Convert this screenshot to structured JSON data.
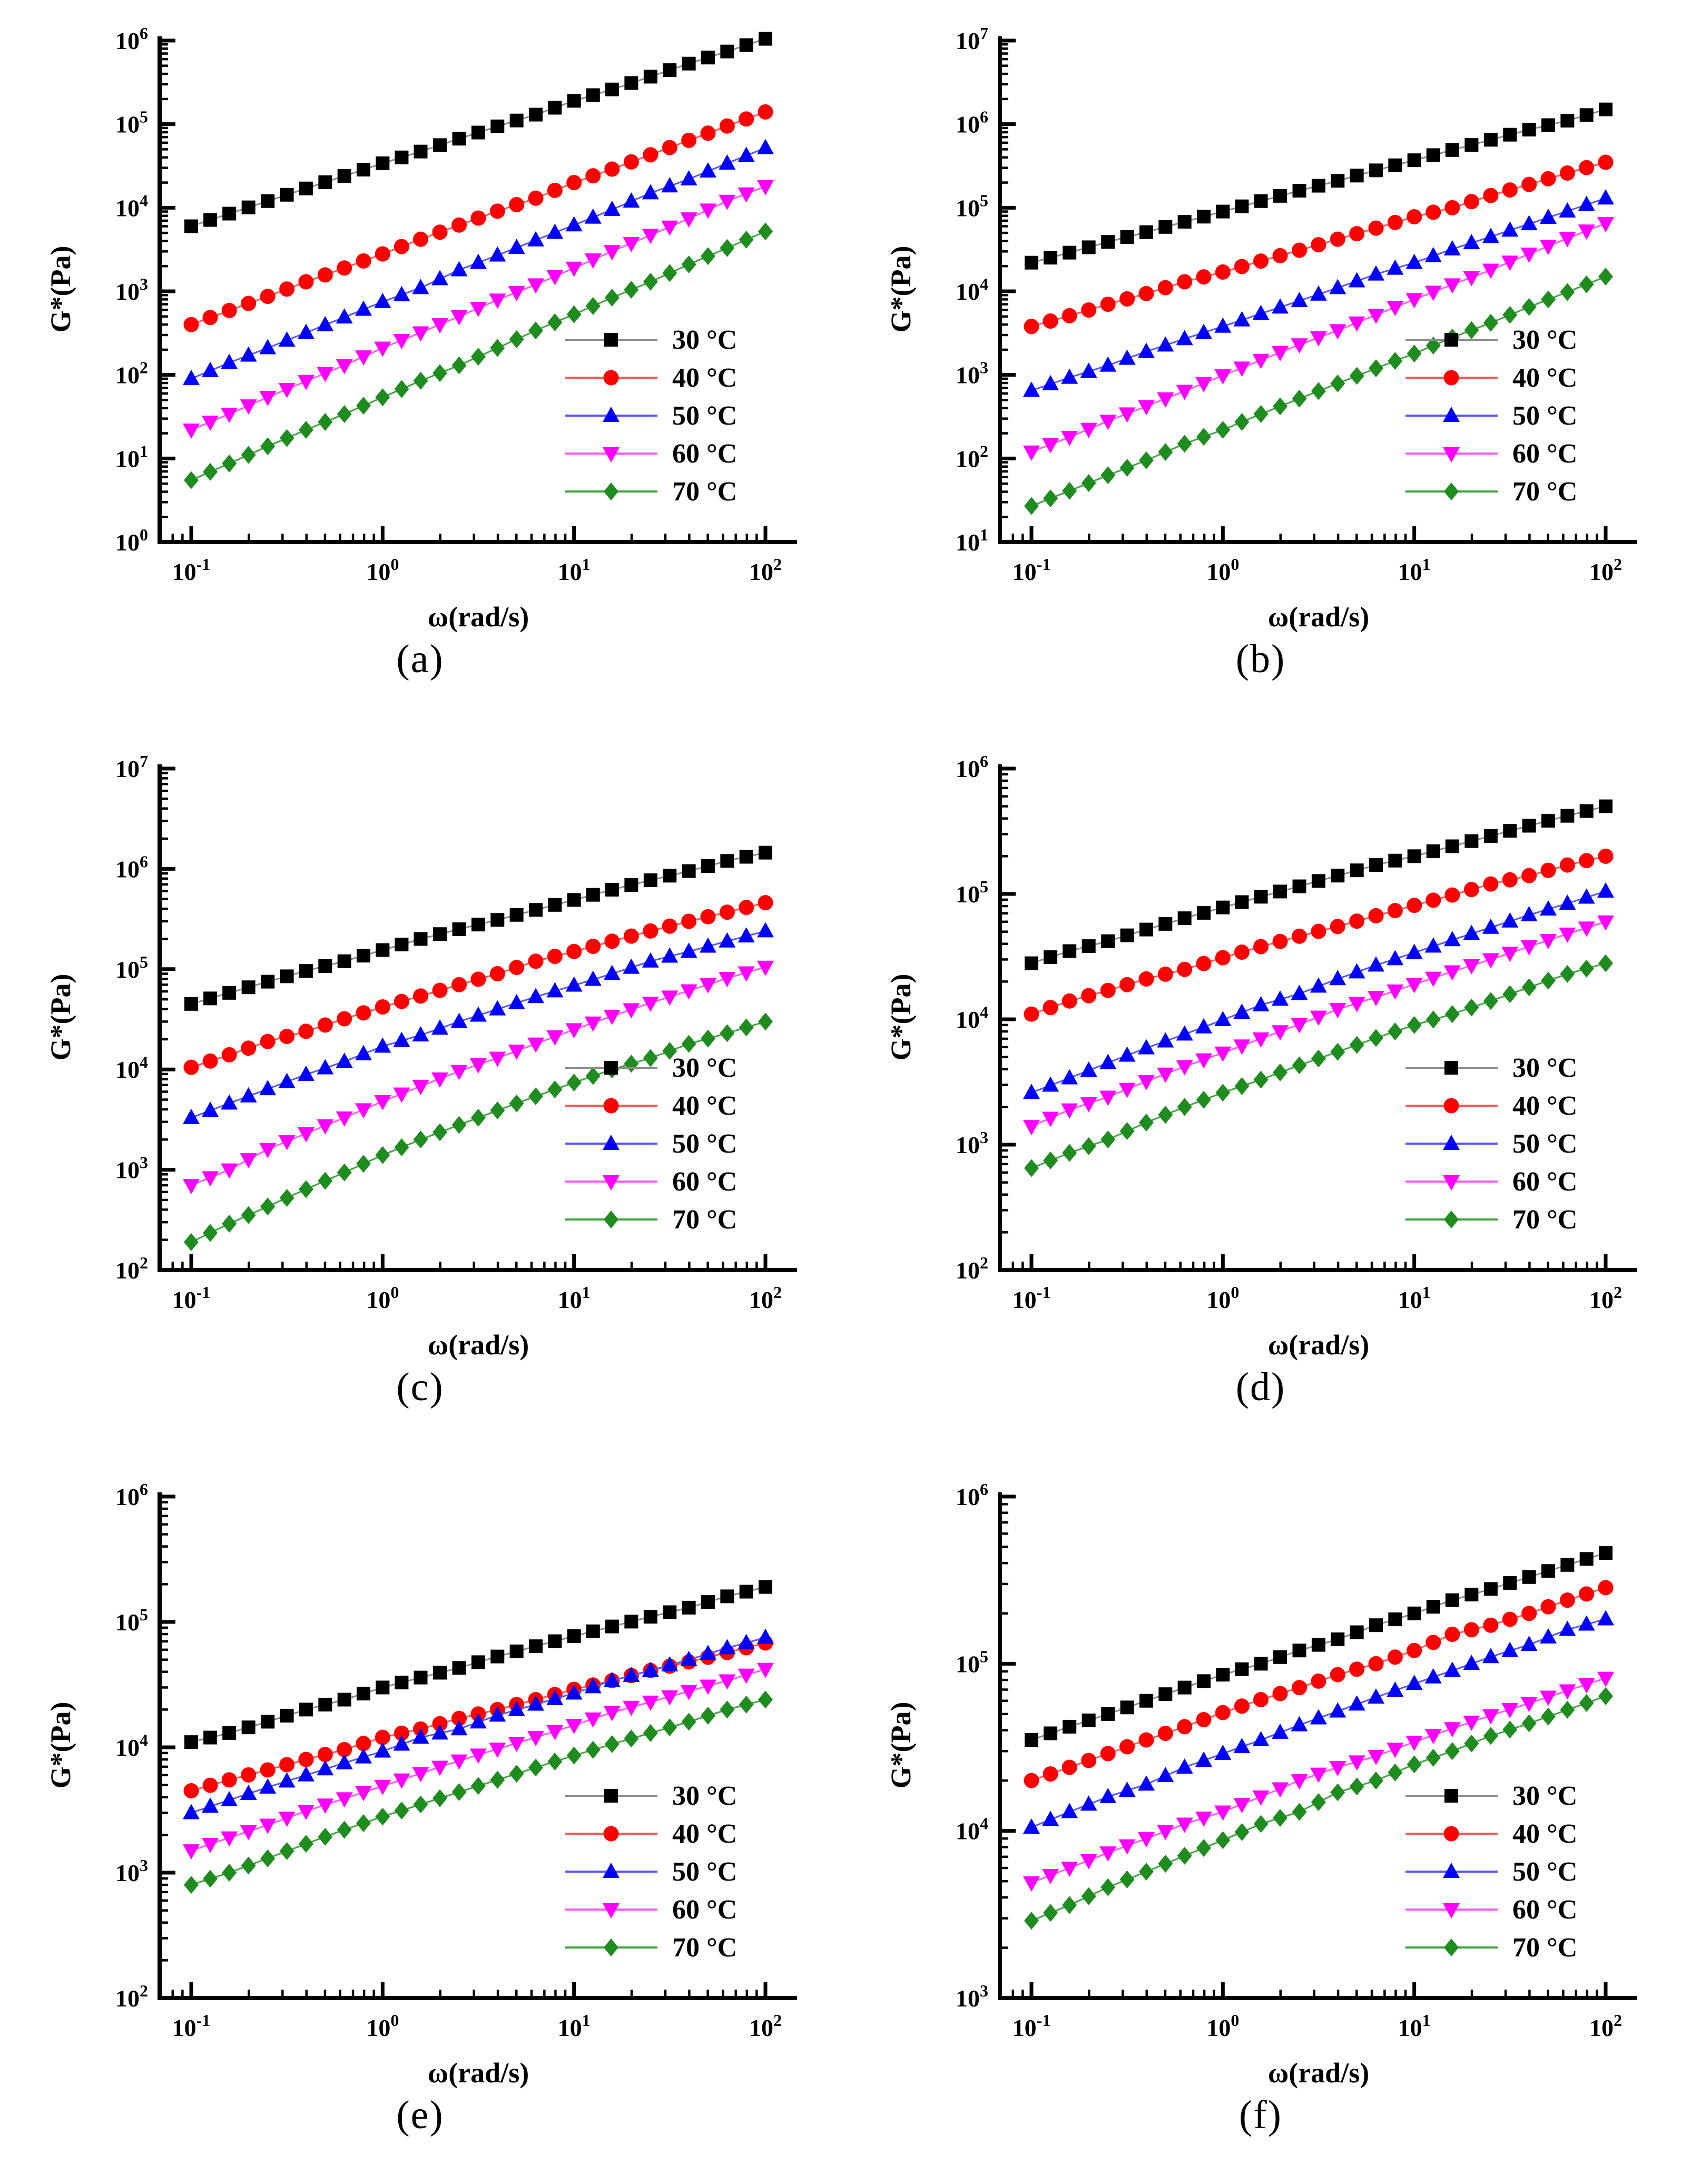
{
  "figure": {
    "type": "multi-panel log-log rheology figure",
    "panel_count": 6,
    "background": "#ffffff"
  },
  "chart_data": [
    {
      "id": "a",
      "caption": "(a)",
      "type": "line",
      "xlabel": "ω(rad/s)",
      "ylabel": "G*(Pa)",
      "x_scale": "log",
      "y_scale": "log",
      "xlim_exp": [
        -1,
        2
      ],
      "ylim_exp": [
        0,
        6
      ],
      "grid": false,
      "legend_position": "lower-right",
      "omega": [
        0.1,
        0.158,
        0.251,
        0.398,
        0.631,
        1,
        1.58,
        2.51,
        3.98,
        6.31,
        10,
        15.8,
        25.1,
        39.8,
        63.1,
        100
      ],
      "series": [
        {
          "label": "30 °C",
          "color": "#000000",
          "line_color": "#8c8c8c",
          "marker": "square",
          "values": [
            6000,
            8500,
            12000,
            17000,
            24000,
            34000,
            47000,
            67000,
            94000,
            130000,
            190000,
            260000,
            370000,
            530000,
            740000,
            1050000
          ]
        },
        {
          "label": "40 °C",
          "color": "#ff0000",
          "line_color": "#ff5555",
          "marker": "circle",
          "values": [
            400,
            590,
            870,
            1300,
            1900,
            2800,
            4200,
            6200,
            9100,
            13000,
            20000,
            29000,
            43000,
            64000,
            95000,
            140000
          ]
        },
        {
          "label": "50 °C",
          "color": "#0000ff",
          "line_color": "#5555ff",
          "marker": "triangle-up",
          "values": [
            90,
            140,
            210,
            320,
            490,
            750,
            1100,
            1800,
            2700,
            4100,
            6200,
            9500,
            15000,
            22000,
            34000,
            52000
          ]
        },
        {
          "label": "60 °C",
          "color": "#ff00ff",
          "line_color": "#ff55ff",
          "marker": "triangle-down",
          "values": [
            22,
            34,
            54,
            84,
            130,
            210,
            320,
            500,
            790,
            1200,
            1900,
            3000,
            4700,
            7400,
            12000,
            18000
          ]
        },
        {
          "label": "70 °C",
          "color": "#1e8c1e",
          "line_color": "#3da53d",
          "marker": "diamond",
          "values": [
            5.5,
            8.7,
            14,
            22,
            34,
            54,
            85,
            130,
            210,
            340,
            530,
            840,
            1300,
            2100,
            3300,
            5200
          ]
        }
      ]
    },
    {
      "id": "b",
      "caption": "(b)",
      "type": "line",
      "xlabel": "ω(rad/s)",
      "ylabel": "G*(Pa)",
      "x_scale": "log",
      "y_scale": "log",
      "xlim_exp": [
        -1,
        2
      ],
      "ylim_exp": [
        1,
        7
      ],
      "grid": false,
      "legend_position": "lower-right",
      "omega": [
        0.1,
        0.158,
        0.251,
        0.398,
        0.631,
        1,
        1.58,
        2.51,
        3.98,
        6.31,
        10,
        15.8,
        25.1,
        39.8,
        63.1,
        100
      ],
      "series": [
        {
          "label": "30 °C",
          "color": "#000000",
          "line_color": "#8c8c8c",
          "marker": "square",
          "values": [
            22000,
            29000,
            39000,
            51000,
            68000,
            90000,
            120000,
            160000,
            210000,
            280000,
            370000,
            490000,
            650000,
            860000,
            1100000,
            1500000
          ]
        },
        {
          "label": "40 °C",
          "color": "#ff0000",
          "line_color": "#ff5555",
          "marker": "circle",
          "values": [
            3800,
            5100,
            7000,
            9400,
            13000,
            17000,
            23000,
            31000,
            42000,
            57000,
            78000,
            100000,
            140000,
            190000,
            260000,
            350000
          ]
        },
        {
          "label": "50 °C",
          "color": "#0000ff",
          "line_color": "#5555ff",
          "marker": "triangle-up",
          "values": [
            650,
            930,
            1300,
            1900,
            2700,
            3800,
            5400,
            7700,
            11000,
            16000,
            22000,
            32000,
            45000,
            64000,
            91000,
            130000
          ]
        },
        {
          "label": "60 °C",
          "color": "#ff00ff",
          "line_color": "#ff55ff",
          "marker": "triangle-down",
          "values": [
            120,
            180,
            280,
            420,
            640,
            980,
            1500,
            2300,
            3400,
            5200,
            8000,
            12000,
            18000,
            28000,
            43000,
            65000
          ]
        },
        {
          "label": "70 °C",
          "color": "#1e8c1e",
          "line_color": "#3da53d",
          "marker": "diamond",
          "values": [
            27,
            41,
            63,
            95,
            150,
            220,
            340,
            520,
            790,
            1200,
            1800,
            2800,
            4200,
            6500,
            9800,
            15000
          ]
        }
      ]
    },
    {
      "id": "c",
      "caption": "(c)",
      "type": "line",
      "xlabel": "ω(rad/s)",
      "ylabel": "G*(Pa)",
      "x_scale": "log",
      "y_scale": "log",
      "xlim_exp": [
        -1,
        2
      ],
      "ylim_exp": [
        2,
        7
      ],
      "grid": false,
      "legend_position": "lower-right",
      "omega": [
        0.1,
        0.158,
        0.251,
        0.398,
        0.631,
        1,
        1.58,
        2.51,
        3.98,
        6.31,
        10,
        15.8,
        25.1,
        39.8,
        63.1,
        100
      ],
      "series": [
        {
          "label": "30 °C",
          "color": "#000000",
          "line_color": "#8c8c8c",
          "marker": "square",
          "values": [
            45000,
            58000,
            75000,
            96000,
            120000,
            155000,
            200000,
            250000,
            310000,
            390000,
            490000,
            620000,
            770000,
            950000,
            1200000,
            1450000
          ]
        },
        {
          "label": "40 °C",
          "color": "#ff0000",
          "line_color": "#ff5555",
          "marker": "circle",
          "values": [
            10500,
            14000,
            19000,
            24000,
            32000,
            42000,
            54000,
            70000,
            90000,
            120000,
            150000,
            190000,
            240000,
            300000,
            370000,
            460000
          ]
        },
        {
          "label": "50 °C",
          "color": "#0000ff",
          "line_color": "#5555ff",
          "marker": "triangle-up",
          "values": [
            3300,
            4600,
            6400,
            8900,
            12000,
            17000,
            22000,
            30000,
            40000,
            53000,
            69000,
            90000,
            120000,
            150000,
            190000,
            240000
          ]
        },
        {
          "label": "60 °C",
          "color": "#ff00ff",
          "line_color": "#ff55ff",
          "marker": "triangle-down",
          "values": [
            700,
            1000,
            1600,
            2300,
            3300,
            4800,
            6800,
            9600,
            13000,
            18000,
            25000,
            34000,
            46000,
            61000,
            81000,
            105000
          ]
        },
        {
          "label": "70 °C",
          "color": "#1e8c1e",
          "line_color": "#3da53d",
          "marker": "diamond",
          "values": [
            190,
            290,
            430,
            640,
            940,
            1400,
            2000,
            2800,
            3900,
            5400,
            7400,
            10000,
            13000,
            18000,
            23000,
            30000
          ]
        }
      ]
    },
    {
      "id": "d",
      "caption": "(d)",
      "type": "line",
      "xlabel": "ω(rad/s)",
      "ylabel": "G*(Pa)",
      "x_scale": "log",
      "y_scale": "log",
      "xlim_exp": [
        -1,
        2
      ],
      "ylim_exp": [
        2,
        6
      ],
      "grid": false,
      "legend_position": "lower-right",
      "omega": [
        0.1,
        0.158,
        0.251,
        0.398,
        0.631,
        1,
        1.58,
        2.51,
        3.98,
        6.31,
        10,
        15.8,
        25.1,
        39.8,
        63.1,
        100
      ],
      "series": [
        {
          "label": "30 °C",
          "color": "#000000",
          "line_color": "#8c8c8c",
          "marker": "square",
          "values": [
            28000,
            35000,
            42000,
            52000,
            64000,
            78000,
            95000,
            115000,
            140000,
            170000,
            200000,
            240000,
            290000,
            350000,
            420000,
            500000
          ]
        },
        {
          "label": "40 °C",
          "color": "#ff0000",
          "line_color": "#ff5555",
          "marker": "circle",
          "values": [
            11000,
            14000,
            17000,
            21000,
            25000,
            31000,
            38000,
            46000,
            55000,
            67000,
            81000,
            98000,
            120000,
            140000,
            170000,
            200000
          ]
        },
        {
          "label": "50 °C",
          "color": "#0000ff",
          "line_color": "#5555ff",
          "marker": "triangle-up",
          "values": [
            2600,
            3400,
            4500,
            5900,
            7600,
            9900,
            13000,
            16000,
            21000,
            27000,
            34000,
            43000,
            54000,
            68000,
            84000,
            105000
          ]
        },
        {
          "label": "60 °C",
          "color": "#ff00ff",
          "line_color": "#ff55ff",
          "marker": "triangle-down",
          "values": [
            1400,
            1900,
            2400,
            3200,
            4200,
            5400,
            7000,
            9100,
            12000,
            15000,
            19000,
            24000,
            30000,
            38000,
            48000,
            60000
          ]
        },
        {
          "label": "70 °C",
          "color": "#1e8c1e",
          "line_color": "#3da53d",
          "marker": "diamond",
          "values": [
            650,
            860,
            1100,
            1500,
            2000,
            2600,
            3300,
            4300,
            5500,
            7100,
            9000,
            11000,
            14000,
            18000,
            23000,
            28000
          ]
        }
      ]
    },
    {
      "id": "e",
      "caption": "(e)",
      "type": "line",
      "xlabel": "ω(rad/s)",
      "ylabel": "G*(Pa)",
      "x_scale": "log",
      "y_scale": "log",
      "xlim_exp": [
        -1,
        2
      ],
      "ylim_exp": [
        2,
        6
      ],
      "grid": false,
      "legend_position": "lower-right",
      "omega": [
        0.1,
        0.158,
        0.251,
        0.398,
        0.631,
        1,
        1.58,
        2.51,
        3.98,
        6.31,
        10,
        15.8,
        25.1,
        39.8,
        63.1,
        100
      ],
      "series": [
        {
          "label": "30 °C",
          "color": "#000000",
          "line_color": "#8c8c8c",
          "marker": "square",
          "values": [
            11000,
            13000,
            16000,
            20000,
            24000,
            30000,
            36000,
            43000,
            53000,
            64000,
            77000,
            92000,
            110000,
            130000,
            160000,
            190000
          ]
        },
        {
          "label": "40 °C",
          "color": "#ff0000",
          "line_color": "#ff5555",
          "marker": "circle",
          "values": [
            4500,
            5500,
            6600,
            8000,
            9600,
            12000,
            14000,
            17000,
            20000,
            24000,
            29000,
            34000,
            41000,
            48000,
            57000,
            68000
          ]
        },
        {
          "label": "50 °C",
          "color": "#0000ff",
          "line_color": "#5555ff",
          "marker": "triangle-up",
          "values": [
            3000,
            3800,
            4800,
            6000,
            7500,
            9300,
            12000,
            14000,
            18000,
            22000,
            27000,
            34000,
            41000,
            50000,
            62000,
            75000
          ]
        },
        {
          "label": "60 °C",
          "color": "#ff00ff",
          "line_color": "#ff55ff",
          "marker": "triangle-down",
          "values": [
            1500,
            1900,
            2400,
            3100,
            3900,
            4900,
            6200,
            7800,
            9700,
            12000,
            15000,
            19000,
            23000,
            28000,
            34000,
            42000
          ]
        },
        {
          "label": "70 °C",
          "color": "#1e8c1e",
          "line_color": "#3da53d",
          "marker": "diamond",
          "values": [
            800,
            1000,
            1300,
            1700,
            2200,
            2800,
            3500,
            4400,
            5500,
            6900,
            8600,
            10600,
            13000,
            16000,
            20000,
            24000
          ]
        }
      ]
    },
    {
      "id": "f",
      "caption": "(f)",
      "type": "line",
      "xlabel": "ω(rad/s)",
      "ylabel": "G*(Pa)",
      "x_scale": "log",
      "y_scale": "log",
      "xlim_exp": [
        -1,
        2
      ],
      "ylim_exp": [
        3,
        6
      ],
      "grid": false,
      "legend_position": "lower-right",
      "omega": [
        0.1,
        0.158,
        0.251,
        0.398,
        0.631,
        1,
        1.58,
        2.51,
        3.98,
        6.31,
        10,
        15.8,
        25.1,
        39.8,
        63.1,
        100
      ],
      "series": [
        {
          "label": "30 °C",
          "color": "#000000",
          "line_color": "#8c8c8c",
          "marker": "square",
          "values": [
            35000,
            42000,
            50000,
            60000,
            72000,
            86000,
            100000,
            120000,
            140000,
            170000,
            200000,
            240000,
            280000,
            330000,
            390000,
            460000
          ]
        },
        {
          "label": "40 °C",
          "color": "#ff0000",
          "line_color": "#ff5555",
          "marker": "circle",
          "values": [
            20000,
            24000,
            29000,
            35000,
            42000,
            51000,
            61000,
            72000,
            86000,
            100000,
            120000,
            150000,
            170000,
            200000,
            240000,
            285000
          ]
        },
        {
          "label": "50 °C",
          "color": "#0000ff",
          "line_color": "#5555ff",
          "marker": "triangle-up",
          "values": [
            10500,
            13000,
            16000,
            19000,
            24000,
            29000,
            35000,
            43000,
            52000,
            63000,
            76000,
            91000,
            110000,
            130000,
            160000,
            185000
          ]
        },
        {
          "label": "60 °C",
          "color": "#ff00ff",
          "line_color": "#ff55ff",
          "marker": "triangle-down",
          "values": [
            4900,
            6000,
            7400,
            9000,
            11000,
            13000,
            16000,
            20000,
            24000,
            28000,
            34000,
            41000,
            49000,
            58000,
            69000,
            82000
          ]
        },
        {
          "label": "70 °C",
          "color": "#1e8c1e",
          "line_color": "#3da53d",
          "marker": "diamond",
          "values": [
            2900,
            3600,
            4600,
            5700,
            7100,
            8800,
            11000,
            13000,
            17000,
            20000,
            25000,
            30000,
            37000,
            44000,
            53000,
            64000
          ]
        }
      ]
    }
  ]
}
